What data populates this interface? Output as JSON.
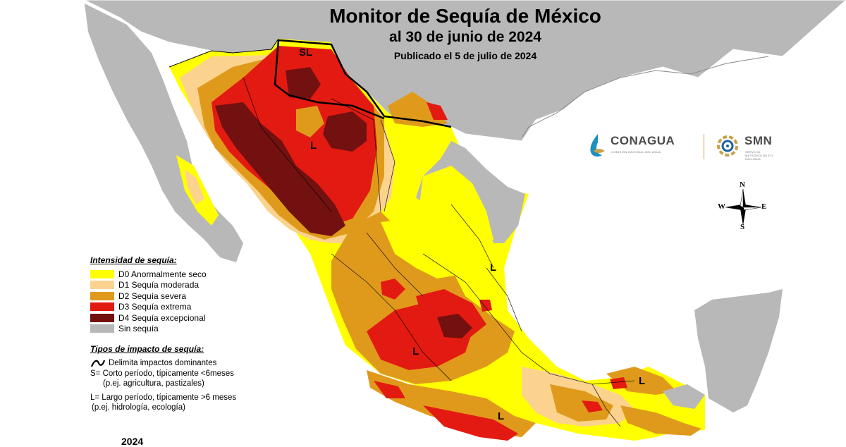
{
  "title": "Monitor de Sequía de México",
  "subtitle": "al 30 de junio de 2024",
  "published": "Publicado el 5 de julio de 2024",
  "legend": {
    "intensity_heading": "Intensidad de sequía:",
    "items": [
      {
        "label": "D0 Anormalmente seco",
        "color": "#ffff00"
      },
      {
        "label": "D1 Sequía moderada",
        "color": "#fcd38e"
      },
      {
        "label": "D2 Sequía severa",
        "color": "#e09a1b"
      },
      {
        "label": "D3 Sequía extrema",
        "color": "#e31a12"
      },
      {
        "label": "D4 Sequía excepcional",
        "color": "#731010"
      },
      {
        "label": "Sin sequía",
        "color": "#b8b8b8"
      }
    ],
    "impact_heading": "Tipos de impacto de sequía:",
    "impact_line": "Delimita impactos dominantes",
    "short_period": "S= Corto período, típicamente <6meses",
    "short_examples": "(p.ej. agricultura, pastizales)",
    "long_period": "L= Largo período, típicamente >6 meses",
    "long_examples": "(p.ej. hidrología, ecología)"
  },
  "map_labels": [
    "SL",
    "L",
    "L",
    "L",
    "L",
    "L"
  ],
  "logos": {
    "conagua": "CONAGUA",
    "conagua_sub": "COMISIÓN NACIONAL DEL AGUA",
    "smn": "SMN",
    "smn_sub": "SERVICIO METEOROLÓGICO NACIONAL"
  },
  "compass": {
    "n": "N",
    "s": "S",
    "e": "E",
    "w": "W"
  },
  "year_footer": "2024",
  "colors": {
    "land_usa": "#b8b8b8",
    "water": "#ffffff",
    "border": "#000000"
  }
}
